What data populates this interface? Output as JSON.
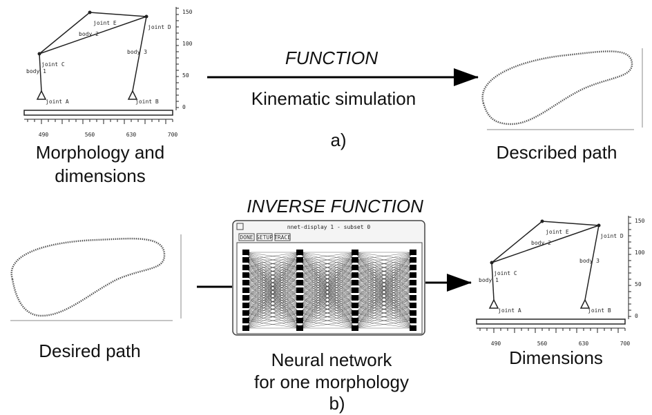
{
  "top": {
    "function_label": "FUNCTION",
    "simulation_label": "Kinematic simulation",
    "panel_label": "a)"
  },
  "mechanism_input": {
    "joint_labels": [
      "joint E",
      "joint D",
      "joint C",
      "joint A",
      "joint B"
    ],
    "body_labels": [
      "body 1",
      "body 2",
      "body 3"
    ],
    "y_ticks": [
      0,
      50,
      100,
      150
    ],
    "x_ticks": [
      490,
      560,
      630,
      700
    ],
    "caption_lines": [
      "Morphology and",
      "dimensions"
    ]
  },
  "described_path": {
    "caption": "Described path"
  },
  "bottom": {
    "inverse_label": "INVERSE FUNCTION",
    "panel_label": "b)"
  },
  "desired_path": {
    "caption": "Desired path"
  },
  "network": {
    "window_title": "nnet-display 1 - subset 0",
    "buttons": [
      "DONE",
      "SETUP",
      "TRACE"
    ],
    "caption_lines": [
      "Neural network",
      "for one morphology"
    ]
  },
  "mechanism_output": {
    "joint_labels": [
      "joint E",
      "joint D",
      "joint C",
      "joint A",
      "joint B"
    ],
    "body_labels": [
      "body 1",
      "body 2",
      "body 3"
    ],
    "y_ticks": [
      0,
      50,
      100,
      150
    ],
    "x_ticks": [
      490,
      560,
      630,
      700
    ],
    "caption": "Dimensions"
  }
}
